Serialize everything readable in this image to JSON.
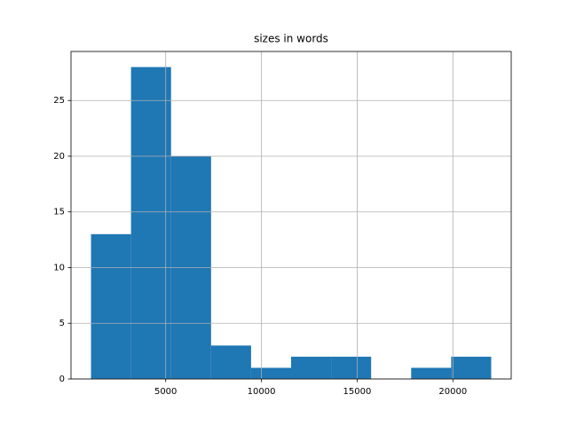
{
  "chart_data": {
    "type": "histogram",
    "title": "sizes in words",
    "bins": [
      1100,
      3190,
      5280,
      7370,
      9460,
      11550,
      13640,
      15730,
      17820,
      19910,
      22000
    ],
    "values": [
      13,
      28,
      20,
      3,
      1,
      2,
      2,
      0,
      1,
      2
    ],
    "color": "#1f77b4",
    "xlim": [
      55,
      23045
    ],
    "xticks": [
      5000,
      10000,
      15000,
      20000
    ],
    "ylim": [
      0,
      29.4
    ],
    "yticks": [
      0,
      5,
      10,
      15,
      20,
      25
    ],
    "grid": true
  }
}
